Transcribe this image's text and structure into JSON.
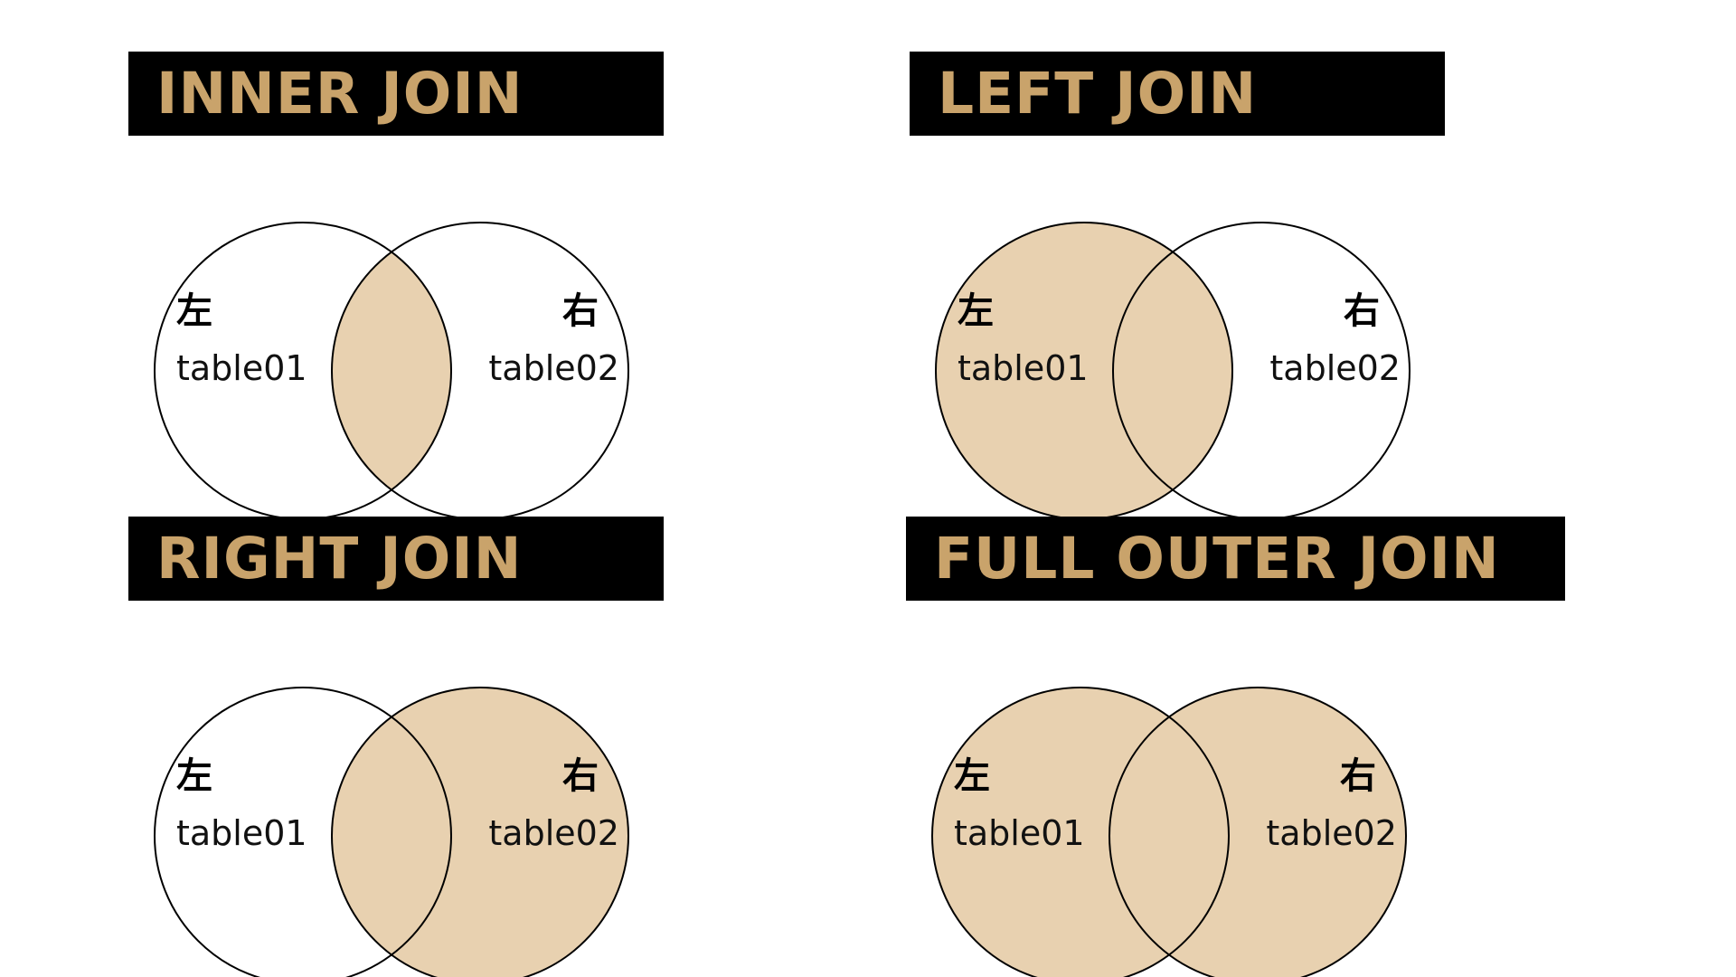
{
  "colors": {
    "title_bg": "#000000",
    "title_text": "#C9A36B",
    "fill": "#E8D1B0",
    "stroke": "#000000",
    "background": "#FFFFFF"
  },
  "panels": [
    {
      "id": "inner",
      "title": "INNER JOIN",
      "shading": "intersection",
      "left": {
        "kanji": "左",
        "table": "table01"
      },
      "right": {
        "kanji": "右",
        "table": "table02"
      }
    },
    {
      "id": "left",
      "title": "LEFT JOIN",
      "shading": "left",
      "left": {
        "kanji": "左",
        "table": "table01"
      },
      "right": {
        "kanji": "右",
        "table": "table02"
      }
    },
    {
      "id": "right",
      "title": "RIGHT JOIN",
      "shading": "right",
      "left": {
        "kanji": "左",
        "table": "table01"
      },
      "right": {
        "kanji": "右",
        "table": "table02"
      }
    },
    {
      "id": "full",
      "title": "FULL OUTER JOIN",
      "shading": "both",
      "left": {
        "kanji": "左",
        "table": "table01"
      },
      "right": {
        "kanji": "右",
        "table": "table02"
      }
    }
  ]
}
